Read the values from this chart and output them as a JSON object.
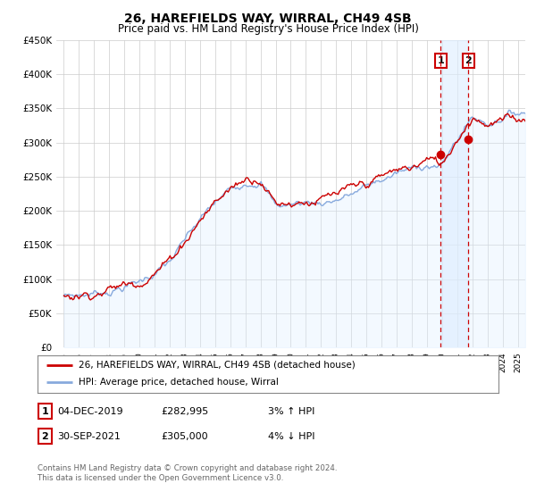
{
  "title": "26, HAREFIELDS WAY, WIRRAL, CH49 4SB",
  "subtitle": "Price paid vs. HM Land Registry's House Price Index (HPI)",
  "ylim": [
    0,
    450000
  ],
  "yticks": [
    0,
    50000,
    100000,
    150000,
    200000,
    250000,
    300000,
    350000,
    400000,
    450000
  ],
  "ytick_labels": [
    "£0",
    "£50K",
    "£100K",
    "£150K",
    "£200K",
    "£250K",
    "£300K",
    "£350K",
    "£400K",
    "£450K"
  ],
  "xlim_start": 1994.5,
  "xlim_end": 2025.5,
  "line1_color": "#cc0000",
  "line2_color": "#88aadd",
  "line2_fill_color": "#ddeeff",
  "marker1_date": 2019.92,
  "marker1_value": 282995,
  "marker2_date": 2021.75,
  "marker2_value": 305000,
  "vline1_x": 2019.92,
  "vline2_x": 2021.75,
  "vline_color": "#cc0000",
  "shade_start": 2019.92,
  "shade_end": 2021.75,
  "shade_color": "#ddeeff",
  "legend_label1": "26, HAREFIELDS WAY, WIRRAL, CH49 4SB (detached house)",
  "legend_label2": "HPI: Average price, detached house, Wirral",
  "table_row1": [
    "1",
    "04-DEC-2019",
    "£282,995",
    "3% ↑ HPI"
  ],
  "table_row2": [
    "2",
    "30-SEP-2021",
    "£305,000",
    "4% ↓ HPI"
  ],
  "footer1": "Contains HM Land Registry data © Crown copyright and database right 2024.",
  "footer2": "This data is licensed under the Open Government Licence v3.0.",
  "bg_color": "#ffffff",
  "grid_color": "#cccccc",
  "title_fontsize": 10,
  "subtitle_fontsize": 8.5
}
